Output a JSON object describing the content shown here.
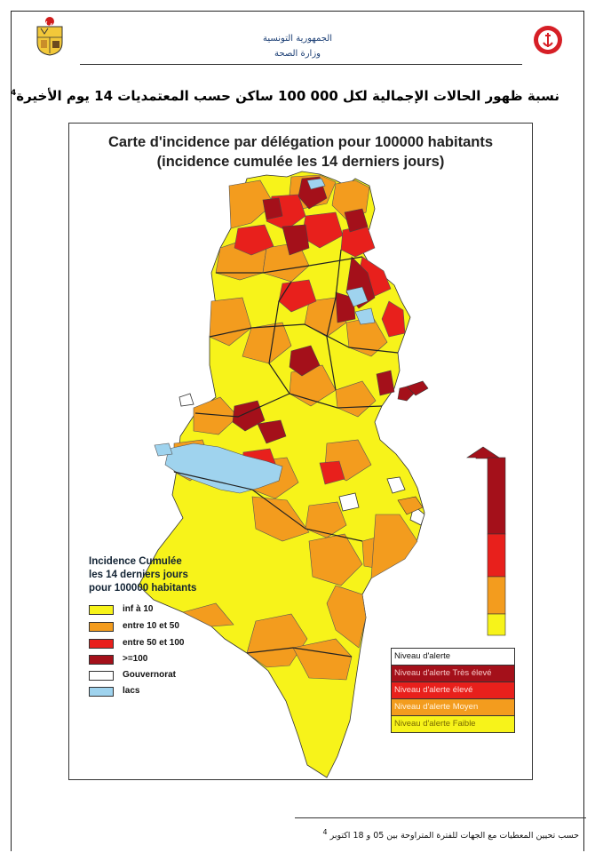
{
  "header": {
    "country": "الجمهورية التونسية",
    "ministry": "وزارة الصحة"
  },
  "page_title": "نسبة ظهور الحالات الإجمالية لكل 000 100 ساكن حسب المعتمديات 14 يوم الأخيرة",
  "page_title_note": "4",
  "map": {
    "title_line1": "Carte d'incidence par délégation pour 100000 habitants",
    "title_line2": "(incidence cumulée les 14 derniers jours)",
    "legend": {
      "title_line1": "Incidence Cumulée",
      "title_line2": "les 14 derniers jours",
      "title_line3": "pour 100000 habitants",
      "items": [
        {
          "label": "inf à 10",
          "color": "#f7f31a"
        },
        {
          "label": "entre 10 et 50",
          "color": "#f39c1e"
        },
        {
          "label": "entre 50 et 100",
          "color": "#e8201c"
        },
        {
          "label": ">=100",
          "color": "#a4101a"
        },
        {
          "label": "Gouvernorat",
          "color": "#ffffff"
        },
        {
          "label": "lacs",
          "color": "#9fd3ee"
        }
      ]
    },
    "alert_table": {
      "header": "Niveau d'alerte",
      "rows": [
        {
          "label": "Niveau d'alerte Très élevé",
          "color": "#a4101a"
        },
        {
          "label": "Niveau d'alerte élevé",
          "color": "#e8201c"
        },
        {
          "label": "Niveau d'alerte Moyen",
          "color": "#f39c1e"
        },
        {
          "label": "Niveau d'alerte Faible",
          "color": "#f7f31a"
        }
      ]
    },
    "alert_scale_colors": [
      "#a4101a",
      "#e8201c",
      "#f39c1e",
      "#f7f31a"
    ]
  },
  "footnote": "حسب تحيين المعطيات مع الجهات للفترة المتراوحة بين 05 و 18 اكتوبر",
  "footnote_note": "4"
}
